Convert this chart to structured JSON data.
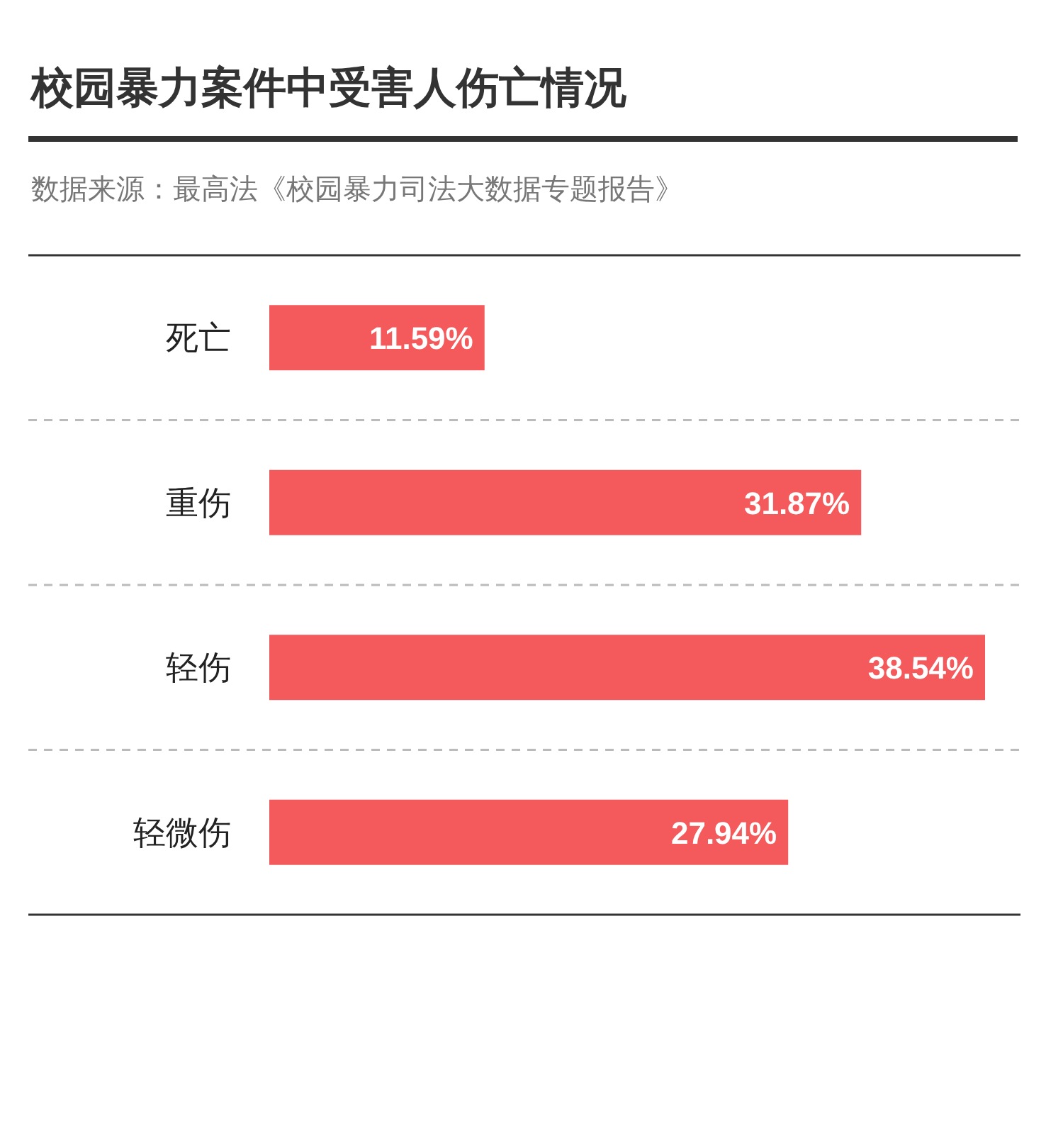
{
  "chart_data": {
    "type": "bar",
    "orientation": "horizontal",
    "title": "校园暴力案件中受害人伤亡情况",
    "annotations": [
      "数据来源：最高法《校园暴力司法大数据专题报告》"
    ],
    "categories": [
      "死亡",
      "重伤",
      "轻伤",
      "轻微伤"
    ],
    "values": [
      11.59,
      31.87,
      38.54,
      27.94
    ],
    "value_labels": [
      "11.59%",
      "31.87%",
      "38.54%",
      "27.94%"
    ],
    "color": "#f45a5c",
    "grid": true
  }
}
